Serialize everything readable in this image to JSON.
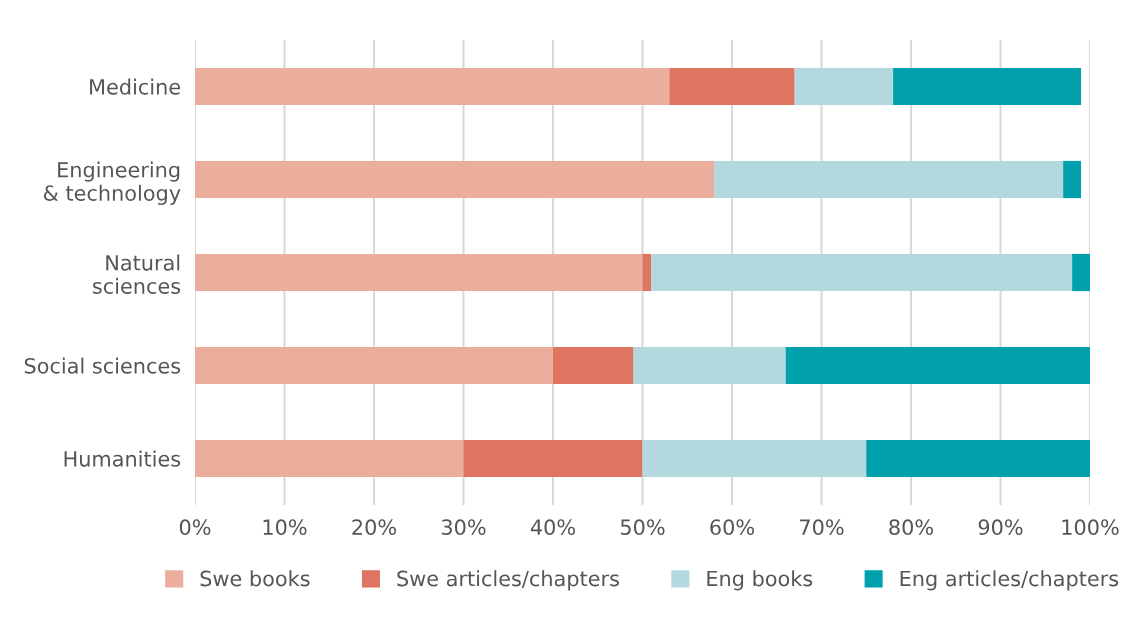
{
  "chart_data": {
    "type": "bar",
    "orientation": "horizontal",
    "stacked": true,
    "categories": [
      "Medicine",
      "Engineering\n& technology",
      "Natural\nsciences",
      "Social sciences",
      "Humanities"
    ],
    "series": [
      {
        "name": "Swe books",
        "color": "#ebad9c",
        "values": [
          53,
          58,
          50,
          40,
          30
        ]
      },
      {
        "name": "Swe articles/chapters",
        "color": "#dd7560",
        "values": [
          14,
          0,
          1,
          9,
          20
        ]
      },
      {
        "name": "Eng books",
        "color": "#b3d9df",
        "values": [
          11,
          39,
          47,
          17,
          25
        ]
      },
      {
        "name": "Eng articles/chapters",
        "color": "#00a0ad",
        "values": [
          21,
          2,
          2,
          34,
          25
        ]
      }
    ],
    "xlim": [
      0,
      100
    ],
    "xticks": [
      {
        "value": 0,
        "label": "0%"
      },
      {
        "value": 10,
        "label": "10%"
      },
      {
        "value": 20,
        "label": "20%"
      },
      {
        "value": 30,
        "label": "30%"
      },
      {
        "value": 40,
        "label": "40%"
      },
      {
        "value": 50,
        "label": "50%"
      },
      {
        "value": 60,
        "label": "60%"
      },
      {
        "value": 70,
        "label": "70%"
      },
      {
        "value": 80,
        "label": "80%"
      },
      {
        "value": 90,
        "label": "90%"
      },
      {
        "value": 100,
        "label": "100%"
      }
    ],
    "grid": "x",
    "legend": "bottom"
  }
}
